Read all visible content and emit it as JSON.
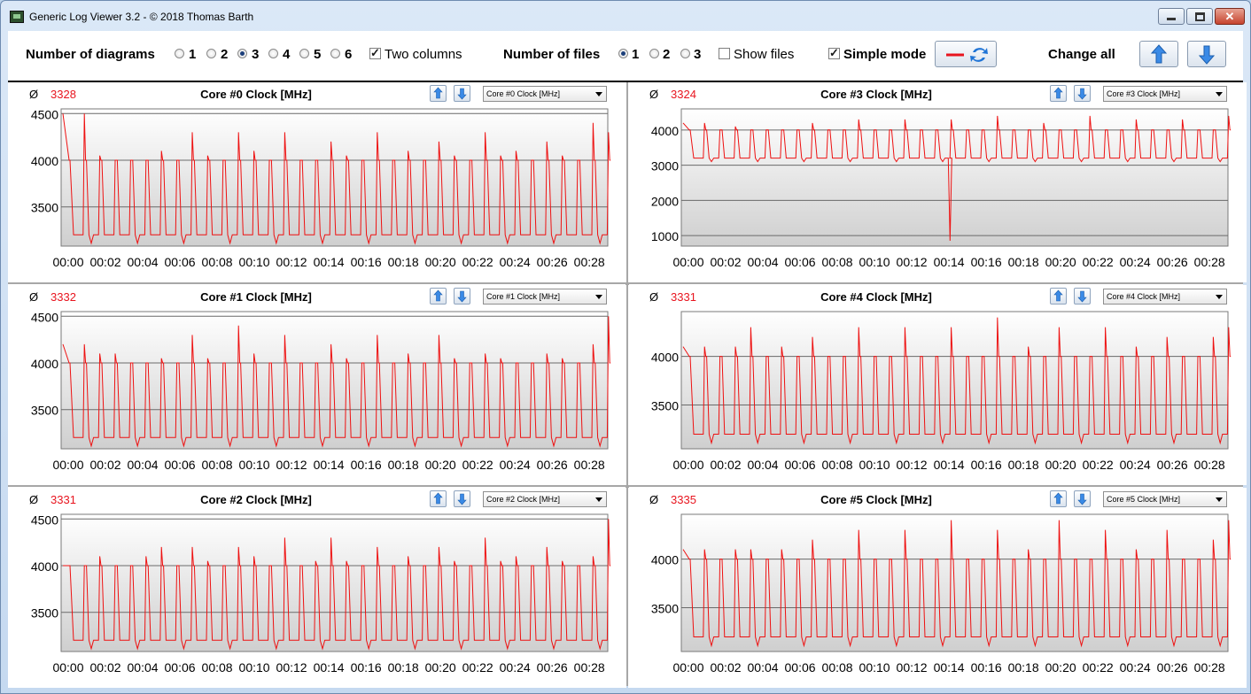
{
  "window": {
    "title": "Generic Log Viewer 3.2 - © 2018 Thomas Barth"
  },
  "toolbar": {
    "num_diagrams_label": "Number of diagrams",
    "diagram_options": [
      "1",
      "2",
      "3",
      "4",
      "5",
      "6"
    ],
    "diagram_selected": "3",
    "two_columns_label": "Two columns",
    "two_columns_checked": true,
    "num_files_label": "Number of files",
    "file_options": [
      "1",
      "2",
      "3"
    ],
    "file_selected": "1",
    "show_files_label": "Show files",
    "show_files_checked": false,
    "simple_mode_label": "Simple mode",
    "simple_mode_checked": true,
    "change_all_label": "Change all"
  },
  "colors": {
    "series": "#ee1111",
    "avg": "#e8141e"
  },
  "x_ticks": [
    "00:00",
    "00:02",
    "00:04",
    "00:06",
    "00:08",
    "00:10",
    "00:12",
    "00:14",
    "00:16",
    "00:18",
    "00:20",
    "00:22",
    "00:24",
    "00:26",
    "00:28"
  ],
  "panels": [
    {
      "avg_symbol": "Ø",
      "avg": "3328",
      "title": "Core #0 Clock [MHz]",
      "selector": "Core #0 Clock [MHz]",
      "yticks": [
        "3500",
        "4000",
        "4500"
      ]
    },
    {
      "avg_symbol": "Ø",
      "avg": "3332",
      "title": "Core #1 Clock [MHz]",
      "selector": "Core #1 Clock [MHz]",
      "yticks": [
        "3500",
        "4000",
        "4500"
      ]
    },
    {
      "avg_symbol": "Ø",
      "avg": "3331",
      "title": "Core #2 Clock [MHz]",
      "selector": "Core #2 Clock [MHz]",
      "yticks": [
        "3500",
        "4000",
        "4500"
      ]
    },
    {
      "avg_symbol": "Ø",
      "avg": "3324",
      "title": "Core #3 Clock [MHz]",
      "selector": "Core #3 Clock [MHz]",
      "yticks": [
        "1000",
        "2000",
        "3000",
        "4000"
      ]
    },
    {
      "avg_symbol": "Ø",
      "avg": "3331",
      "title": "Core #4 Clock [MHz]",
      "selector": "Core #4 Clock [MHz]",
      "yticks": [
        "3500",
        "4000"
      ]
    },
    {
      "avg_symbol": "Ø",
      "avg": "3335",
      "title": "Core #5 Clock [MHz]",
      "selector": "Core #5 Clock [MHz]",
      "yticks": [
        "3500",
        "4000"
      ]
    }
  ],
  "chart_data": [
    {
      "type": "line",
      "title": "Core #0 Clock [MHz]",
      "x_range": [
        "00:00",
        "00:29"
      ],
      "ylim": [
        3080,
        4550
      ],
      "yticks": [
        3500,
        4000,
        4500
      ],
      "grid": true,
      "series": [
        {
          "name": "",
          "baseline": 3200,
          "dip": 3110,
          "plateau": 4000,
          "peaks": [
            4500,
            4050,
            4000,
            4000,
            4000,
            4100,
            4000,
            4300,
            4050,
            4000,
            4300,
            4100,
            4000,
            4300,
            4000,
            4000,
            4200,
            4050,
            4000,
            4300,
            4000,
            4100,
            4000,
            4200,
            4050,
            4000,
            4300,
            4050,
            4100,
            4000,
            4200,
            4050,
            4000,
            4400,
            4300
          ]
        }
      ]
    },
    {
      "type": "line",
      "title": "Core #1 Clock [MHz]",
      "x_range": [
        "00:00",
        "00:29"
      ],
      "ylim": [
        3080,
        4550
      ],
      "yticks": [
        3500,
        4000,
        4500
      ],
      "grid": true,
      "series": [
        {
          "name": "",
          "baseline": 3200,
          "dip": 3110,
          "plateau": 4000,
          "peaks": [
            4200,
            4100,
            4100,
            4000,
            4000,
            4050,
            4000,
            4300,
            4050,
            4000,
            4400,
            4100,
            4000,
            4300,
            4000,
            4000,
            4200,
            4050,
            4000,
            4300,
            4000,
            4100,
            4000,
            4300,
            4050,
            4000,
            4100,
            4050,
            4000,
            4000,
            4100,
            4050,
            4000,
            4200,
            4500
          ]
        }
      ]
    },
    {
      "type": "line",
      "title": "Core #2 Clock [MHz]",
      "x_range": [
        "00:00",
        "00:29"
      ],
      "ylim": [
        3080,
        4550
      ],
      "yticks": [
        3500,
        4000,
        4500
      ],
      "grid": true,
      "series": [
        {
          "name": "",
          "baseline": 3200,
          "dip": 3110,
          "plateau": 4000,
          "peaks": [
            4000,
            4100,
            4000,
            4000,
            4100,
            4200,
            4000,
            4200,
            4050,
            4000,
            4200,
            4100,
            4000,
            4300,
            4000,
            4050,
            4300,
            4050,
            4000,
            4200,
            4000,
            4100,
            4000,
            4200,
            4050,
            4000,
            4300,
            4050,
            4100,
            4000,
            4200,
            4050,
            4000,
            4100,
            4500
          ]
        }
      ]
    },
    {
      "type": "line",
      "title": "Core #3 Clock [MHz]",
      "x_range": [
        "00:00",
        "00:29"
      ],
      "ylim": [
        700,
        4600
      ],
      "yticks": [
        1000,
        2000,
        3000,
        4000
      ],
      "grid": true,
      "series": [
        {
          "name": "",
          "baseline": 3200,
          "dip": 3100,
          "plateau": 4000,
          "min_value": 850,
          "peaks": [
            4200,
            4000,
            4100,
            4000,
            4000,
            4000,
            4000,
            4200,
            4000,
            4000,
            4300,
            4000,
            4000,
            4300,
            4000,
            4000,
            4300,
            4000,
            4000,
            4400,
            4000,
            4000,
            4200,
            4000,
            4000,
            4400,
            4000,
            4000,
            4300,
            4000,
            4000,
            4300,
            4000,
            4000,
            4400
          ]
        }
      ]
    },
    {
      "type": "line",
      "title": "Core #4 Clock [MHz]",
      "x_range": [
        "00:00",
        "00:29"
      ],
      "ylim": [
        3050,
        4460
      ],
      "yticks": [
        3500,
        4000
      ],
      "grid": true,
      "series": [
        {
          "name": "",
          "baseline": 3200,
          "dip": 3110,
          "plateau": 4000,
          "peaks": [
            4100,
            4000,
            4100,
            4300,
            4000,
            4100,
            4000,
            4200,
            4000,
            4000,
            4300,
            4000,
            4000,
            4300,
            4000,
            4000,
            4300,
            4000,
            4000,
            4400,
            4000,
            4100,
            4000,
            4300,
            4000,
            4000,
            4300,
            4000,
            4100,
            4000,
            4200,
            4000,
            4000,
            4200,
            4300
          ]
        }
      ]
    },
    {
      "type": "line",
      "title": "Core #5 Clock [MHz]",
      "x_range": [
        "00:00",
        "00:29"
      ],
      "ylim": [
        3050,
        4460
      ],
      "yticks": [
        3500,
        4000
      ],
      "grid": true,
      "series": [
        {
          "name": "",
          "baseline": 3200,
          "dip": 3110,
          "plateau": 4000,
          "peaks": [
            4100,
            4000,
            4100,
            4100,
            4000,
            4100,
            4000,
            4200,
            4000,
            4000,
            4300,
            4000,
            4000,
            4300,
            4000,
            4000,
            4400,
            4000,
            4000,
            4300,
            4000,
            4100,
            4000,
            4400,
            4000,
            4000,
            4300,
            4000,
            4100,
            4000,
            4300,
            4000,
            4000,
            4200,
            4400
          ]
        }
      ]
    }
  ]
}
